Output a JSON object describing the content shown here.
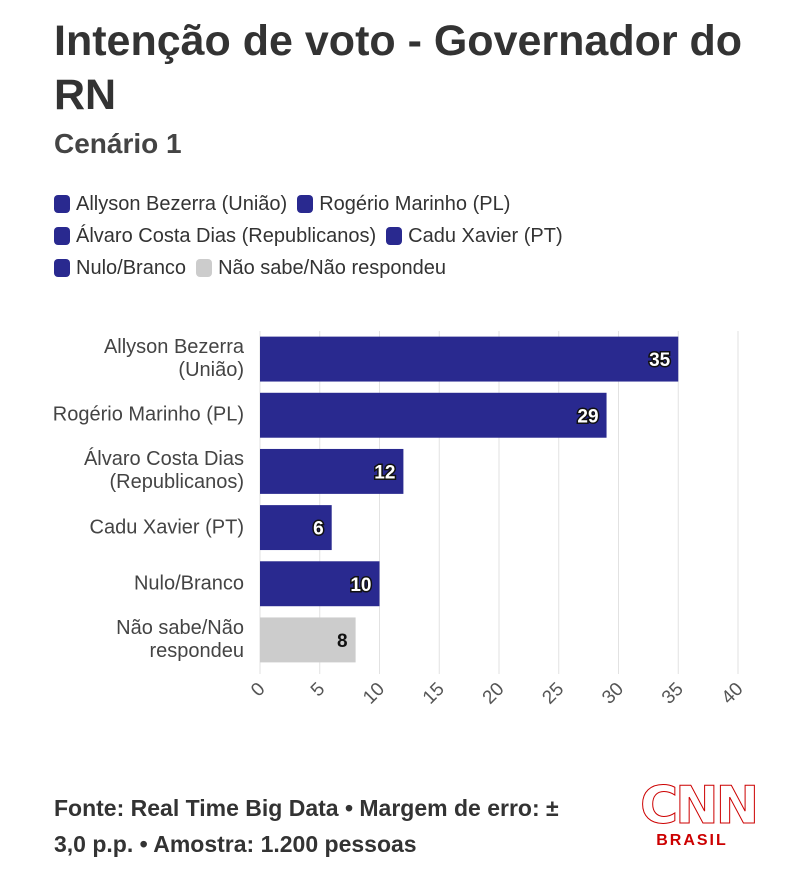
{
  "chart_data": {
    "type": "hbar",
    "title": "Intenção de voto - Governador do RN",
    "subtitle": "Cenário 1",
    "categories": [
      "Allyson Bezerra (União)",
      "Rogério Marinho (PL)",
      "Álvaro Costa Dias (Republicanos)",
      "Cadu Xavier (PT)",
      "Nulo/Branco",
      "Não sabe/Não respondeu"
    ],
    "values": [
      35,
      29,
      12,
      6,
      10,
      8
    ],
    "colors": [
      "#29298f",
      "#29298f",
      "#29298f",
      "#29298f",
      "#29298f",
      "#cccccc"
    ],
    "xlim": [
      0,
      40
    ],
    "xticks": [
      0,
      5,
      10,
      15,
      20,
      25,
      30,
      35,
      40
    ],
    "grid": true,
    "source": "Fonte: Real Time Big Data • Margem de erro: ± 3,0 p.p. • Amostra: 1.200 pessoas"
  },
  "logo": {
    "text": "CNN",
    "subtitle": "BRASIL"
  }
}
